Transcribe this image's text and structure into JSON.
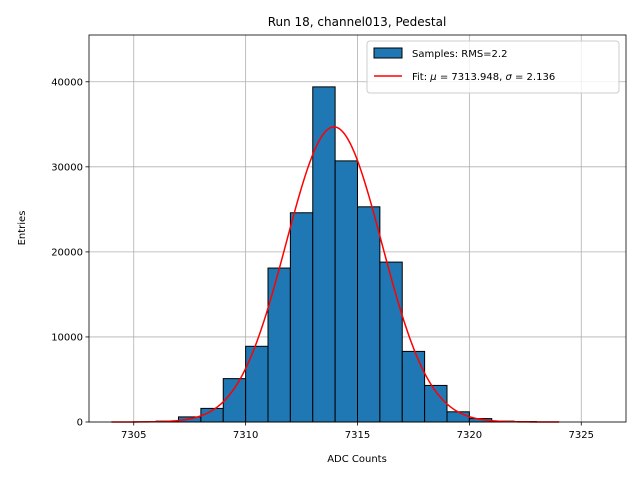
{
  "chart_data": {
    "type": "bar",
    "title": "Run 18, channel013, Pedestal",
    "xlabel": "ADC Counts",
    "ylabel": "Entries",
    "xlim": [
      7303,
      7327
    ],
    "ylim": [
      0,
      45500
    ],
    "x_ticks": [
      7305,
      7310,
      7315,
      7320,
      7325
    ],
    "y_ticks": [
      0,
      10000,
      20000,
      30000,
      40000
    ],
    "grid": true,
    "legend_position": "upper-right",
    "histogram": {
      "name": "Samples: RMS=2.2",
      "bin_width": 1,
      "bin_left_edges": [
        7305,
        7306,
        7307,
        7308,
        7309,
        7310,
        7311,
        7312,
        7313,
        7314,
        7315,
        7316,
        7317,
        7318,
        7319,
        7320,
        7321,
        7322,
        7323
      ],
      "counts": [
        20,
        100,
        600,
        1600,
        5100,
        8900,
        18100,
        24600,
        39400,
        30700,
        25300,
        18800,
        8300,
        4300,
        1200,
        400,
        100,
        50,
        10
      ],
      "color": "#1f77b4",
      "edge_color": "#000000"
    },
    "fit": {
      "name": "Fit: μ = 7313.948, σ = 2.136",
      "name_parts": {
        "prefix": "Fit: ",
        "mu_symbol": "μ",
        "mu_text": " = 7313.948, ",
        "sigma_symbol": "σ",
        "sigma_text": " = 2.136"
      },
      "mu": 7313.948,
      "sigma": 2.136,
      "amplitude": 34700,
      "x_range": [
        7304,
        7324
      ],
      "color": "#ff0000"
    }
  }
}
